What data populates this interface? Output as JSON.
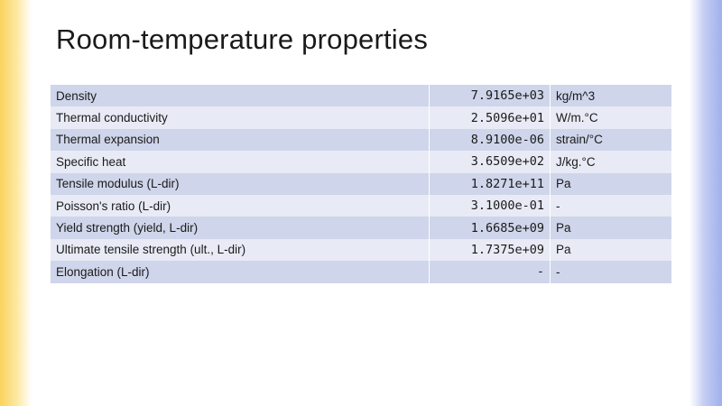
{
  "slide": {
    "title": "Room-temperature properties"
  },
  "table": {
    "rows": [
      {
        "property": "Density",
        "value": "7.9165e+03",
        "unit": "kg/m^3"
      },
      {
        "property": "Thermal conductivity",
        "value": "2.5096e+01",
        "unit": "W/m.°C"
      },
      {
        "property": "Thermal expansion",
        "value": "8.9100e-06",
        "unit": "strain/°C"
      },
      {
        "property": "Specific heat",
        "value": "3.6509e+02",
        "unit": "J/kg.°C"
      },
      {
        "property": "Tensile modulus (L-dir)",
        "value": "1.8271e+11",
        "unit": "Pa"
      },
      {
        "property": "Poisson's ratio (L-dir)",
        "value": "3.1000e-01",
        "unit": "-"
      },
      {
        "property": "Yield strength (yield, L-dir)",
        "value": "1.6685e+09",
        "unit": "Pa"
      },
      {
        "property": "Ultimate tensile strength (ult., L-dir)",
        "value": "1.7375e+09",
        "unit": "Pa"
      },
      {
        "property": "Elongation (L-dir)",
        "value": "-",
        "unit": "-"
      }
    ]
  },
  "theme": {
    "left_band_color": "#f9d35c",
    "right_band_color": "#9fb0ec",
    "row_dark": "#cfd5ea",
    "row_light": "#e8ebf5"
  }
}
